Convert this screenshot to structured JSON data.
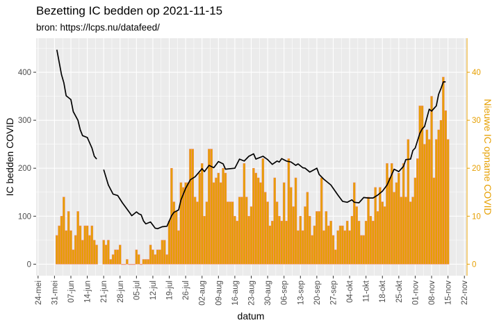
{
  "chart_data": {
    "type": "bar+line",
    "title": "Bezetting IC bedden op 2021-11-15",
    "subtitle": "bron: https://lcps.nu/datafeed/",
    "xlabel": "datum",
    "ylabel": "IC bedden COVID",
    "ylabel_right": "Nieuwe IC opname COVID",
    "ylim": [
      -24,
      471
    ],
    "y_ticks": [
      0,
      100,
      200,
      300,
      400
    ],
    "y_ticks_right": [
      0,
      10,
      20,
      30,
      40
    ],
    "right_axis_scale": 0.1,
    "x_range": [
      "2021-05-24",
      "2021-11-22"
    ],
    "x_tick_labels": [
      "24-mei",
      "31-mei",
      "07-jun",
      "14-jun",
      "21-jun",
      "28-jun",
      "05-jul",
      "12-jul",
      "19-jul",
      "26-jul",
      "02-aug",
      "09-aug",
      "16-aug",
      "23-aug",
      "30-aug",
      "06-sep",
      "13-sep",
      "20-sep",
      "27-sep",
      "04-okt",
      "11-okt",
      "18-okt",
      "25-okt",
      "01-nov",
      "08-nov",
      "15-nov",
      "22-nov"
    ],
    "grid": true,
    "colors": {
      "bar_fill": "#E69F00",
      "bar_outline": "#F08878",
      "line": "#000000",
      "right_axis": "#E69F00",
      "panel": "#EBEBEB"
    },
    "bars": {
      "axis": "right",
      "dates": [
        "2021-06-01",
        "2021-06-02",
        "2021-06-03",
        "2021-06-04",
        "2021-06-05",
        "2021-06-06",
        "2021-06-07",
        "2021-06-08",
        "2021-06-09",
        "2021-06-10",
        "2021-06-11",
        "2021-06-12",
        "2021-06-13",
        "2021-06-14",
        "2021-06-15",
        "2021-06-16",
        "2021-06-17",
        "2021-06-18",
        "2021-06-19",
        "2021-06-20",
        "2021-06-21",
        "2021-06-22",
        "2021-06-23",
        "2021-06-24",
        "2021-06-25",
        "2021-06-26",
        "2021-06-27",
        "2021-06-28",
        "2021-06-29",
        "2021-06-30",
        "2021-07-01",
        "2021-07-02",
        "2021-07-03",
        "2021-07-04",
        "2021-07-05",
        "2021-07-06",
        "2021-07-07",
        "2021-07-08",
        "2021-07-09",
        "2021-07-10",
        "2021-07-11",
        "2021-07-12",
        "2021-07-13",
        "2021-07-14",
        "2021-07-15",
        "2021-07-16",
        "2021-07-17",
        "2021-07-18",
        "2021-07-19",
        "2021-07-20",
        "2021-07-21",
        "2021-07-22",
        "2021-07-23",
        "2021-07-24",
        "2021-07-25",
        "2021-07-26",
        "2021-07-27",
        "2021-07-28",
        "2021-07-29",
        "2021-07-30",
        "2021-07-31",
        "2021-08-01",
        "2021-08-02",
        "2021-08-03",
        "2021-08-04",
        "2021-08-05",
        "2021-08-06",
        "2021-08-07",
        "2021-08-08",
        "2021-08-09",
        "2021-08-10",
        "2021-08-11",
        "2021-08-12",
        "2021-08-13",
        "2021-08-14",
        "2021-08-15",
        "2021-08-16",
        "2021-08-17",
        "2021-08-18",
        "2021-08-19",
        "2021-08-20",
        "2021-08-21",
        "2021-08-22",
        "2021-08-23",
        "2021-08-24",
        "2021-08-25",
        "2021-08-26",
        "2021-08-27",
        "2021-08-28",
        "2021-08-29",
        "2021-08-30",
        "2021-08-31",
        "2021-09-01",
        "2021-09-02",
        "2021-09-03",
        "2021-09-04",
        "2021-09-05",
        "2021-09-06",
        "2021-09-07",
        "2021-09-08",
        "2021-09-09",
        "2021-09-10",
        "2021-09-11",
        "2021-09-12",
        "2021-09-13",
        "2021-09-14",
        "2021-09-15",
        "2021-09-16",
        "2021-09-17",
        "2021-09-18",
        "2021-09-19",
        "2021-09-20",
        "2021-09-21",
        "2021-09-22",
        "2021-09-23",
        "2021-09-24",
        "2021-09-25",
        "2021-09-26",
        "2021-09-27",
        "2021-09-28",
        "2021-09-29",
        "2021-09-30",
        "2021-10-01",
        "2021-10-02",
        "2021-10-03",
        "2021-10-04",
        "2021-10-05",
        "2021-10-06",
        "2021-10-07",
        "2021-10-08",
        "2021-10-09",
        "2021-10-10",
        "2021-10-11",
        "2021-10-12",
        "2021-10-13",
        "2021-10-14",
        "2021-10-15",
        "2021-10-16",
        "2021-10-17",
        "2021-10-18",
        "2021-10-19",
        "2021-10-20",
        "2021-10-21",
        "2021-10-22",
        "2021-10-23",
        "2021-10-24",
        "2021-10-25",
        "2021-10-26",
        "2021-10-27",
        "2021-10-28",
        "2021-10-29",
        "2021-10-30",
        "2021-10-31",
        "2021-11-01",
        "2021-11-02",
        "2021-11-03",
        "2021-11-04",
        "2021-11-05",
        "2021-11-06",
        "2021-11-07",
        "2021-11-08",
        "2021-11-09",
        "2021-11-10",
        "2021-11-11",
        "2021-11-12",
        "2021-11-13",
        "2021-11-14",
        "2021-11-15"
      ],
      "values": [
        6,
        8,
        10,
        14,
        7,
        11,
        7,
        3,
        6,
        11,
        8,
        5,
        8,
        8,
        6,
        8,
        5,
        4,
        null,
        null,
        5,
        4,
        5,
        1,
        2,
        3,
        3,
        4,
        0,
        0,
        1,
        0,
        0,
        0,
        3,
        2,
        0,
        1,
        1,
        1,
        4,
        3,
        2,
        3,
        3,
        5,
        5,
        2,
        9,
        20,
        13,
        11,
        7,
        17,
        16,
        17,
        17,
        24,
        24,
        14,
        13,
        19,
        21,
        10,
        13,
        24,
        24,
        17,
        18,
        19,
        17,
        20,
        19,
        13,
        13,
        13,
        10,
        9,
        14,
        14,
        21,
        14,
        10,
        12,
        20,
        19,
        18,
        17,
        22,
        15,
        13,
        8,
        9,
        18,
        13,
        10,
        9,
        17,
        9,
        22,
        16,
        12,
        18,
        7,
        10,
        7,
        12,
        15,
        10,
        6,
        8,
        11,
        11,
        18,
        7,
        11,
        8,
        9,
        6,
        3,
        7,
        8,
        8,
        7,
        9,
        7,
        10,
        17,
        12,
        9,
        6,
        6,
        9,
        14,
        10,
        9,
        16,
        11,
        16,
        13,
        12,
        21,
        18,
        21,
        15,
        17,
        19,
        14,
        21,
        14,
        26,
        13,
        14,
        18,
        22,
        33,
        33,
        25,
        28,
        26,
        35,
        18,
        26,
        28,
        30,
        39,
        32,
        26
      ]
    },
    "line": {
      "axis": "left",
      "segments": [
        [
          [
            "2021-06-01",
            447
          ],
          [
            "2021-06-03",
            395
          ],
          [
            "2021-06-04",
            378
          ],
          [
            "2021-06-05",
            351
          ],
          [
            "2021-06-07",
            343
          ],
          [
            "2021-06-08",
            318
          ],
          [
            "2021-06-10",
            300
          ],
          [
            "2021-06-11",
            280
          ],
          [
            "2021-06-12",
            268
          ],
          [
            "2021-06-14",
            264
          ],
          [
            "2021-06-16",
            242
          ],
          [
            "2021-06-17",
            225
          ],
          [
            "2021-06-18",
            219
          ]
        ],
        [
          [
            "2021-06-21",
            197
          ],
          [
            "2021-06-23",
            165
          ],
          [
            "2021-06-25",
            146
          ],
          [
            "2021-06-27",
            143
          ],
          [
            "2021-06-29",
            128
          ],
          [
            "2021-07-02",
            108
          ],
          [
            "2021-07-03",
            101
          ],
          [
            "2021-07-05",
            109
          ],
          [
            "2021-07-06",
            105
          ],
          [
            "2021-07-07",
            103
          ],
          [
            "2021-07-08",
            90
          ],
          [
            "2021-07-09",
            84
          ],
          [
            "2021-07-11",
            88
          ],
          [
            "2021-07-13",
            75
          ],
          [
            "2021-07-14",
            74
          ],
          [
            "2021-07-16",
            78
          ],
          [
            "2021-07-18",
            79
          ],
          [
            "2021-07-20",
            101
          ],
          [
            "2021-07-21",
            108
          ],
          [
            "2021-07-23",
            113
          ],
          [
            "2021-07-24",
            134
          ],
          [
            "2021-07-26",
            158
          ],
          [
            "2021-07-28",
            176
          ],
          [
            "2021-07-30",
            182
          ],
          [
            "2021-08-02",
            199
          ],
          [
            "2021-08-03",
            193
          ],
          [
            "2021-08-05",
            206
          ],
          [
            "2021-08-07",
            201
          ],
          [
            "2021-08-09",
            214
          ],
          [
            "2021-08-11",
            209
          ],
          [
            "2021-08-12",
            198
          ],
          [
            "2021-08-16",
            200
          ],
          [
            "2021-08-18",
            219
          ],
          [
            "2021-08-20",
            215
          ],
          [
            "2021-08-22",
            225
          ],
          [
            "2021-08-24",
            230
          ],
          [
            "2021-08-25",
            219
          ],
          [
            "2021-08-28",
            225
          ],
          [
            "2021-08-30",
            218
          ],
          [
            "2021-09-01",
            208
          ],
          [
            "2021-09-03",
            215
          ],
          [
            "2021-09-04",
            213
          ],
          [
            "2021-09-05",
            220
          ],
          [
            "2021-09-07",
            215
          ],
          [
            "2021-09-09",
            213
          ],
          [
            "2021-09-11",
            206
          ],
          [
            "2021-09-12",
            209
          ],
          [
            "2021-09-14",
            201
          ],
          [
            "2021-09-15",
            200
          ],
          [
            "2021-09-17",
            192
          ],
          [
            "2021-09-20",
            200
          ],
          [
            "2021-09-21",
            187
          ],
          [
            "2021-09-23",
            177
          ],
          [
            "2021-09-26",
            165
          ],
          [
            "2021-09-29",
            144
          ],
          [
            "2021-10-01",
            131
          ],
          [
            "2021-10-03",
            129
          ],
          [
            "2021-10-05",
            134
          ],
          [
            "2021-10-06",
            129
          ],
          [
            "2021-10-08",
            128
          ],
          [
            "2021-10-10",
            139
          ],
          [
            "2021-10-12",
            138
          ],
          [
            "2021-10-14",
            138
          ],
          [
            "2021-10-16",
            144
          ],
          [
            "2021-10-18",
            152
          ],
          [
            "2021-10-20",
            165
          ],
          [
            "2021-10-23",
            198
          ],
          [
            "2021-10-25",
            193
          ],
          [
            "2021-10-27",
            204
          ],
          [
            "2021-10-28",
            218
          ],
          [
            "2021-10-30",
            219
          ],
          [
            "2021-10-31",
            237
          ],
          [
            "2021-11-01",
            242
          ],
          [
            "2021-11-03",
            273
          ],
          [
            "2021-11-04",
            282
          ],
          [
            "2021-11-05",
            287
          ],
          [
            "2021-11-07",
            323
          ],
          [
            "2021-11-08",
            319
          ],
          [
            "2021-11-10",
            330
          ],
          [
            "2021-11-11",
            354
          ],
          [
            "2021-11-12",
            366
          ],
          [
            "2021-11-13",
            380
          ],
          [
            "2021-11-14",
            380
          ]
        ]
      ]
    }
  }
}
